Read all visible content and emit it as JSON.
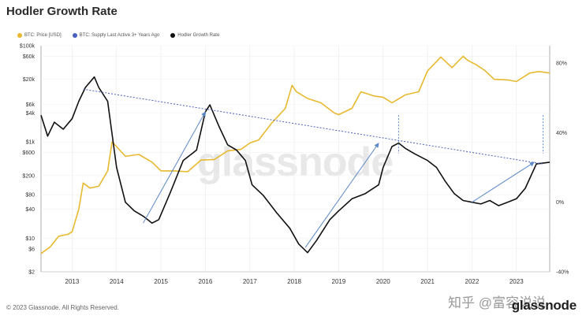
{
  "page": {
    "title": "Hodler Growth Rate",
    "copyright": "© 2023 Glassnode. All Rights Reserved.",
    "brand": "glassnode",
    "watermark": "glassnode",
    "source_mark": "知乎 @富容说说"
  },
  "chart_data": {
    "type": "line",
    "title": "Hodler Growth Rate",
    "legend": [
      {
        "name": "BTC: Price [USD]",
        "color": "#e8b92f"
      },
      {
        "name": "BTC: Supply Last Active 3+ Years Ago",
        "color": "#4a5fc1"
      },
      {
        "name": "Hodler Growth Rate",
        "color": "#111111"
      }
    ],
    "legend_position": "top-left",
    "grid": true,
    "x_ticks": [
      "2013",
      "2014",
      "2015",
      "2016",
      "2017",
      "2018",
      "2019",
      "2020",
      "2021",
      "2022",
      "2023"
    ],
    "xlim": [
      2012.3,
      2023.75
    ],
    "y_left": {
      "scale": "log",
      "ticks": [
        "$100k",
        "$60k",
        "$20k",
        "$6k",
        "$4k",
        "$1k",
        "$600",
        "$200",
        "$80",
        "$40",
        "$10",
        "$6",
        "$2"
      ],
      "tick_values": [
        100000,
        60000,
        20000,
        6000,
        4000,
        1000,
        600,
        200,
        80,
        40,
        10,
        6,
        2
      ],
      "lim": [
        2,
        100000
      ]
    },
    "y_right": {
      "ticks": [
        "80%",
        "40%",
        "0%",
        "-40%"
      ],
      "tick_values": [
        80,
        40,
        0,
        -40
      ],
      "lim": [
        -40,
        90
      ]
    },
    "series": [
      {
        "name": "BTC: Price [USD]",
        "axis": "left",
        "color": "#e8b92f",
        "x": [
          2012.3,
          2012.5,
          2012.7,
          2012.9,
          2013.0,
          2013.15,
          2013.25,
          2013.4,
          2013.6,
          2013.8,
          2013.9,
          2014.0,
          2014.2,
          2014.5,
          2014.8,
          2015.0,
          2015.3,
          2015.6,
          2015.9,
          2016.2,
          2016.5,
          2016.8,
          2017.0,
          2017.2,
          2017.5,
          2017.8,
          2017.95,
          2018.05,
          2018.3,
          2018.6,
          2018.9,
          2019.0,
          2019.3,
          2019.5,
          2019.8,
          2020.0,
          2020.2,
          2020.5,
          2020.8,
          2021.0,
          2021.3,
          2021.55,
          2021.8,
          2021.9,
          2022.1,
          2022.3,
          2022.5,
          2022.8,
          2023.0,
          2023.3,
          2023.5,
          2023.75
        ],
        "values": [
          4.8,
          6.5,
          11,
          12,
          13.5,
          40,
          140,
          110,
          120,
          250,
          1000,
          800,
          500,
          550,
          380,
          250,
          250,
          240,
          420,
          430,
          650,
          700,
          950,
          1100,
          2500,
          5000,
          15000,
          11000,
          8000,
          6500,
          4000,
          3700,
          5000,
          11000,
          9000,
          8500,
          6500,
          9500,
          11000,
          30000,
          58000,
          35000,
          60000,
          50000,
          40000,
          30000,
          20000,
          19500,
          18000,
          27000,
          29000,
          27000
        ]
      },
      {
        "name": "Hodler Growth Rate",
        "axis": "right",
        "color": "#111111",
        "x": [
          2012.3,
          2012.45,
          2012.6,
          2012.8,
          2013.0,
          2013.15,
          2013.3,
          2013.5,
          2013.6,
          2013.8,
          2014.0,
          2014.2,
          2014.4,
          2014.6,
          2014.8,
          2014.95,
          2015.2,
          2015.5,
          2015.8,
          2016.0,
          2016.1,
          2016.3,
          2016.5,
          2016.7,
          2016.9,
          2017.05,
          2017.3,
          2017.6,
          2017.9,
          2018.1,
          2018.3,
          2018.5,
          2018.8,
          2019.0,
          2019.3,
          2019.6,
          2019.9,
          2020.0,
          2020.2,
          2020.35,
          2020.5,
          2020.7,
          2021.0,
          2021.2,
          2021.4,
          2021.6,
          2021.8,
          2022.0,
          2022.2,
          2022.4,
          2022.6,
          2022.8,
          2023.0,
          2023.2,
          2023.45,
          2023.75
        ],
        "values": [
          50,
          38,
          46,
          42,
          48,
          58,
          66,
          72,
          66,
          58,
          20,
          0,
          -5,
          -8,
          -12,
          -10,
          5,
          24,
          30,
          52,
          56,
          44,
          33,
          30,
          24,
          10,
          4,
          -6,
          -15,
          -24,
          -29,
          -22,
          -10,
          -5,
          2,
          5,
          10,
          20,
          32,
          34,
          31,
          28,
          24,
          20,
          12,
          5,
          1,
          0,
          -1,
          1,
          -2,
          0,
          2,
          8,
          22,
          23
        ]
      }
    ],
    "trend_lines": [
      {
        "x": [
          2013.25,
          2023.6
        ],
        "right_values": [
          65,
          22
        ],
        "style": "dotted"
      },
      {
        "x": [
          2014.6,
          2016.0
        ],
        "right_values": [
          -12,
          52
        ],
        "style": "arrow"
      },
      {
        "x": [
          2018.25,
          2019.9
        ],
        "right_values": [
          -26,
          34
        ],
        "style": "arrow"
      },
      {
        "x": [
          2022.0,
          2023.4
        ],
        "right_values": [
          0,
          23
        ],
        "style": "arrow"
      }
    ],
    "vertical_markers": [
      2020.35,
      2023.6
    ]
  }
}
